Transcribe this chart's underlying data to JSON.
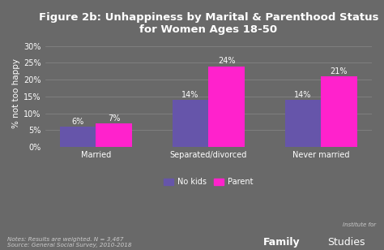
{
  "title": "Figure 2b: Unhappiness by Marital & Parenthood Status\nfor Women Ages 18-50",
  "categories": [
    "Married",
    "Separated/divorced",
    "Never married"
  ],
  "no_kids": [
    6,
    14,
    14
  ],
  "parent": [
    7,
    24,
    21
  ],
  "no_kids_color": "#6655aa",
  "parent_color": "#ff22cc",
  "background_color": "#696969",
  "text_color": "white",
  "ylabel": "% not too happy",
  "ylim": [
    0,
    32
  ],
  "yticks": [
    0,
    5,
    10,
    15,
    20,
    25,
    30
  ],
  "ytick_labels": [
    "0%",
    "5%",
    "10%",
    "15%",
    "20%",
    "25%",
    "30%"
  ],
  "legend_labels": [
    "No kids",
    "Parent"
  ],
  "notes": "Notes: Results are weighted. N = 3,467\nSource: General Social Survey, 2010-2018",
  "bar_width": 0.32,
  "title_fontsize": 9.5,
  "label_fontsize": 7,
  "axis_fontsize": 7.5,
  "tick_fontsize": 7
}
